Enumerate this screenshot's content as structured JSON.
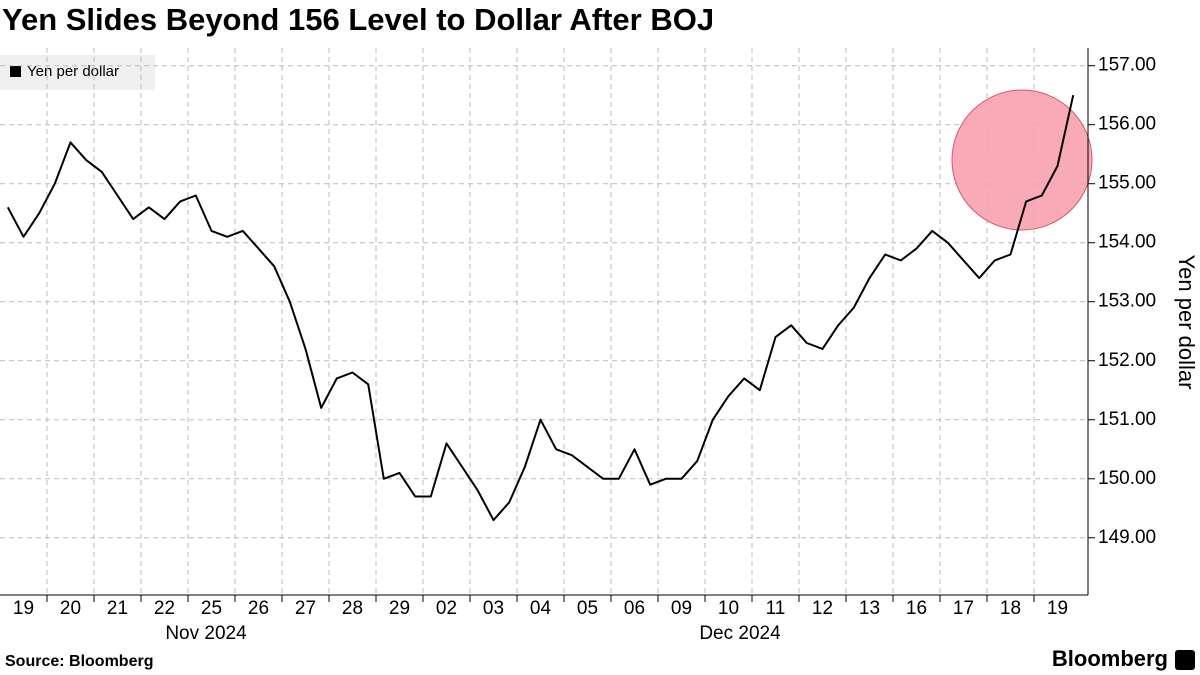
{
  "chart_data": {
    "type": "line",
    "title": "Yen Slides Beyond 156 Level to Dollar After BOJ",
    "y_label": "Yen per dollar",
    "source": "Source: Bloomberg",
    "brand": "Bloomberg",
    "months": [
      "Nov 2024",
      "Dec 2024"
    ],
    "categories": [
      null,
      "19",
      null,
      null,
      "20",
      null,
      null,
      "21",
      null,
      null,
      "22",
      null,
      null,
      "25",
      null,
      null,
      "26",
      null,
      null,
      "27",
      null,
      null,
      "28",
      null,
      null,
      "29",
      null,
      null,
      "02",
      null,
      null,
      "03",
      null,
      null,
      "04",
      null,
      null,
      "05",
      null,
      null,
      "06",
      null,
      null,
      "09",
      null,
      null,
      "10",
      null,
      null,
      "11",
      null,
      null,
      "12",
      null,
      null,
      "13",
      null,
      null,
      "16",
      null,
      null,
      "17",
      null,
      null,
      "18",
      null,
      null,
      "19",
      null
    ],
    "series": [
      {
        "name": "Yen per dollar",
        "color": "#000000",
        "values": [
          154.6,
          154.1,
          154.5,
          155.0,
          155.7,
          155.4,
          155.2,
          154.8,
          154.4,
          154.6,
          154.4,
          154.7,
          154.8,
          154.2,
          154.1,
          154.2,
          153.9,
          153.6,
          153.0,
          152.2,
          151.2,
          151.7,
          151.8,
          151.6,
          150.0,
          150.1,
          149.7,
          149.7,
          150.6,
          150.2,
          149.8,
          149.3,
          149.6,
          150.2,
          151.0,
          150.5,
          150.4,
          150.2,
          150.0,
          150.0,
          150.5,
          149.9,
          150.0,
          150.0,
          150.3,
          151.0,
          151.4,
          151.7,
          151.5,
          152.4,
          152.6,
          152.3,
          152.2,
          152.6,
          152.9,
          153.4,
          153.8,
          153.7,
          153.9,
          154.2,
          154.0,
          153.7,
          153.4,
          153.7,
          153.8,
          154.7,
          154.8,
          155.3,
          156.5
        ]
      }
    ],
    "ylim": [
      148.03,
      157.3
    ],
    "yticks": [
      {
        "value": 149,
        "label": "149.00"
      },
      {
        "value": 150,
        "label": "150.00"
      },
      {
        "value": 151,
        "label": "151.00"
      },
      {
        "value": 152,
        "label": "152.00"
      },
      {
        "value": 153,
        "label": "153.00"
      },
      {
        "value": 154,
        "label": "154.00"
      },
      {
        "value": 155,
        "label": "155.00"
      },
      {
        "value": 156,
        "label": "156.00"
      },
      {
        "value": 157,
        "label": "157.00"
      }
    ],
    "grid": true,
    "legend": "top-left"
  }
}
